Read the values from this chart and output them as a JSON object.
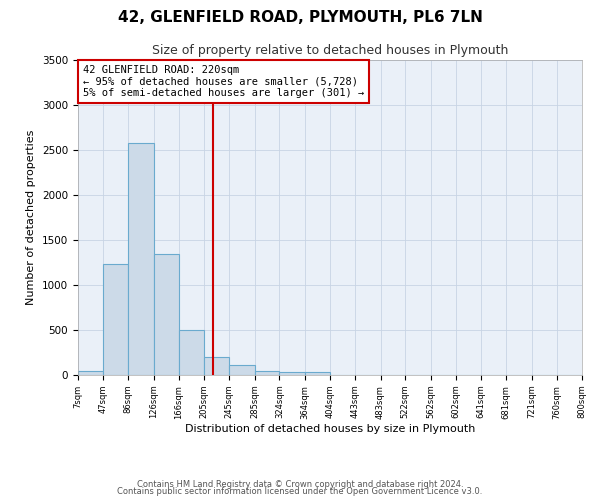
{
  "title1": "42, GLENFIELD ROAD, PLYMOUTH, PL6 7LN",
  "title2": "Size of property relative to detached houses in Plymouth",
  "xlabel": "Distribution of detached houses by size in Plymouth",
  "ylabel": "Number of detached properties",
  "bar_edges": [
    7,
    47,
    86,
    126,
    166,
    205,
    245,
    285,
    324,
    364,
    404,
    443,
    483,
    522,
    562,
    602,
    641,
    681,
    721,
    760,
    800
  ],
  "bar_heights": [
    50,
    1230,
    2580,
    1340,
    500,
    200,
    110,
    50,
    30,
    30,
    5,
    5,
    5,
    0,
    0,
    0,
    0,
    0,
    0,
    0
  ],
  "bar_color": "#ccdae8",
  "bar_edgecolor": "#6aaace",
  "bar_linewidth": 0.8,
  "vline_x": 220,
  "vline_color": "#cc0000",
  "vline_linewidth": 1.5,
  "annotation_text": "42 GLENFIELD ROAD: 220sqm\n← 95% of detached houses are smaller (5,728)\n5% of semi-detached houses are larger (301) →",
  "annotation_fontsize": 7.5,
  "annotation_box_color": "#cc0000",
  "ylim": [
    0,
    3500
  ],
  "yticks": [
    0,
    500,
    1000,
    1500,
    2000,
    2500,
    3000,
    3500
  ],
  "grid_color": "#c8d4e4",
  "bg_color": "#eaf0f8",
  "title1_fontsize": 11,
  "title2_fontsize": 9,
  "xtick_fontsize": 6,
  "ytick_fontsize": 7.5,
  "xlabel_fontsize": 8,
  "ylabel_fontsize": 8,
  "footer_text1": "Contains HM Land Registry data © Crown copyright and database right 2024.",
  "footer_text2": "Contains public sector information licensed under the Open Government Licence v3.0.",
  "footer_fontsize": 6
}
